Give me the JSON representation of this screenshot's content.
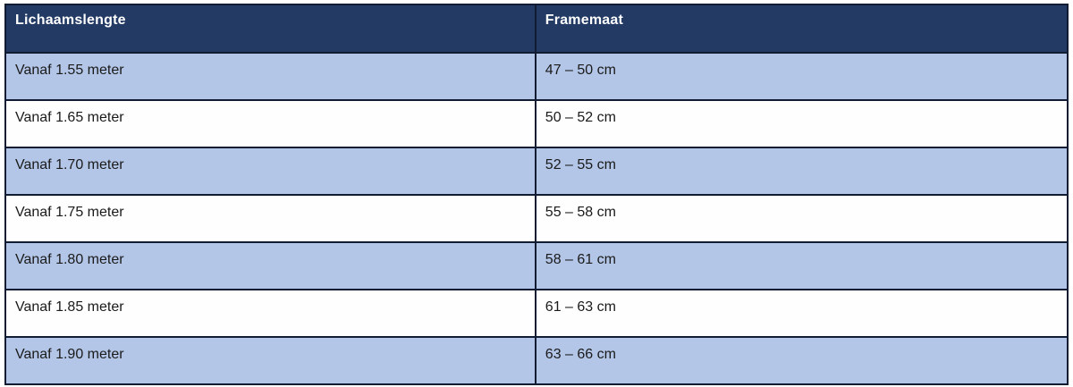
{
  "table": {
    "headers": [
      "Lichaamslengte",
      "Framemaat"
    ],
    "rows": [
      [
        "Vanaf 1.55 meter",
        "47 – 50 cm"
      ],
      [
        "Vanaf 1.65 meter",
        "50 – 52 cm"
      ],
      [
        "Vanaf 1.70 meter",
        "52 – 55 cm"
      ],
      [
        "Vanaf 1.75 meter",
        "55 – 58 cm"
      ],
      [
        "Vanaf 1.80 meter",
        "58 – 61 cm"
      ],
      [
        "Vanaf 1.85 meter",
        "61 – 63 cm"
      ],
      [
        "Vanaf 1.90 meter",
        "63 – 66 cm"
      ]
    ],
    "colors": {
      "header_bg": "#223a64",
      "header_text": "#ffffff",
      "row_alt_bg": "#b3c6e7",
      "row_plain_bg": "#fefefe",
      "border": "#111c33",
      "body_text": "#1a1a1a"
    }
  }
}
